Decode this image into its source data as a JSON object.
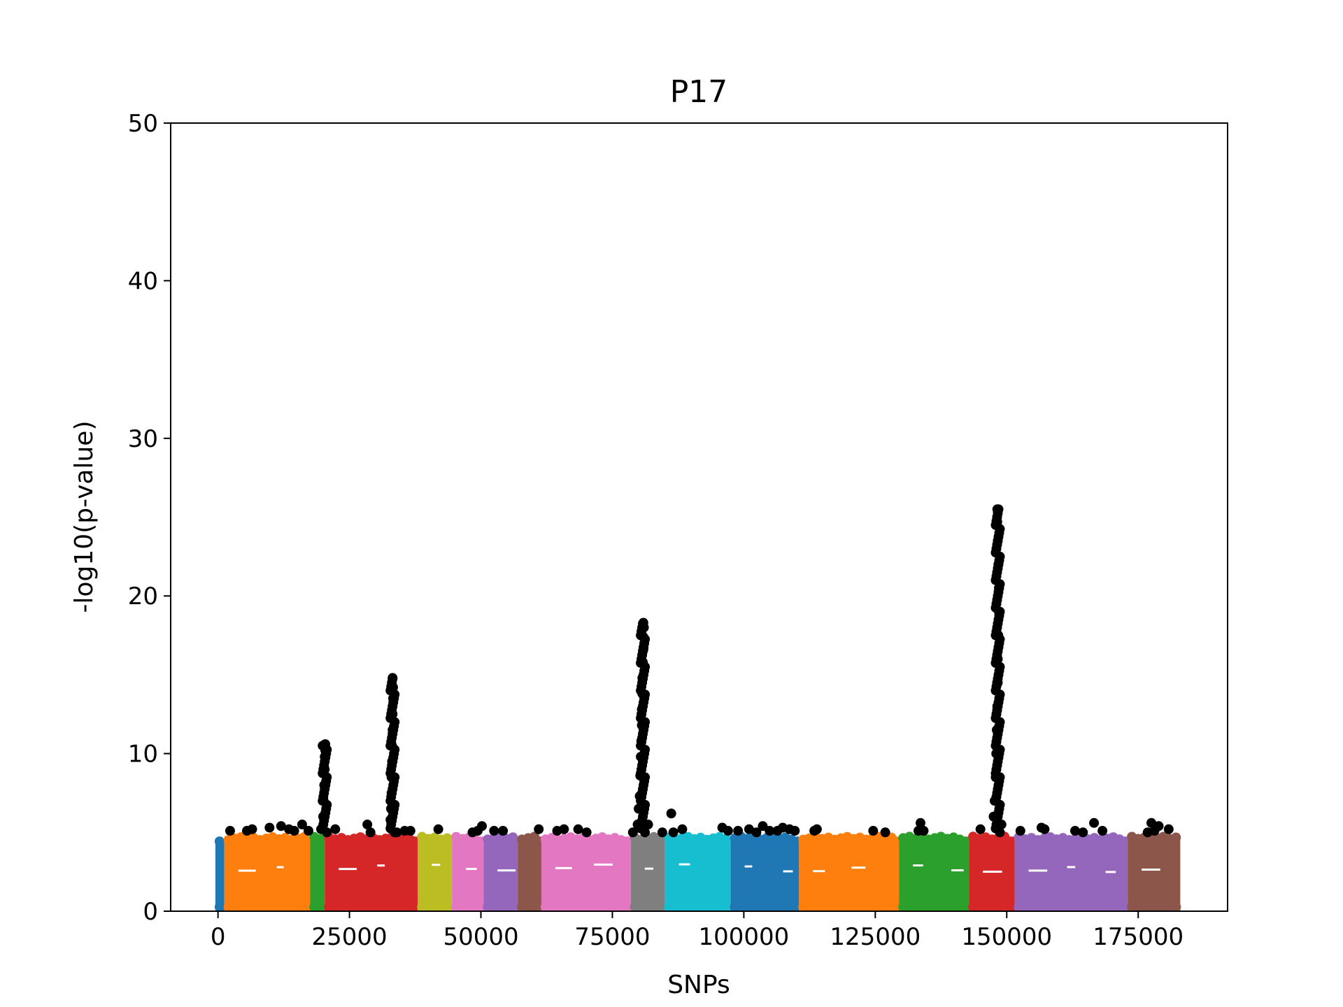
{
  "chart_data": {
    "type": "scatter",
    "title": "P17",
    "xlabel": "SNPs",
    "ylabel": "-log10(p-value)",
    "xlim": [
      -9000,
      192000
    ],
    "ylim": [
      0,
      50
    ],
    "x_ticks": [
      {
        "value": 0,
        "label": "0"
      },
      {
        "value": 25000,
        "label": "25000"
      },
      {
        "value": 50000,
        "label": "50000"
      },
      {
        "value": 75000,
        "label": "75000"
      },
      {
        "value": 100000,
        "label": "100000"
      },
      {
        "value": 125000,
        "label": "125000"
      },
      {
        "value": 150000,
        "label": "150000"
      },
      {
        "value": 175000,
        "label": "175000"
      }
    ],
    "y_ticks": [
      {
        "value": 0,
        "label": "0"
      },
      {
        "value": 10,
        "label": "10"
      },
      {
        "value": 20,
        "label": "20"
      },
      {
        "value": 30,
        "label": "30"
      },
      {
        "value": 40,
        "label": "40"
      },
      {
        "value": 50,
        "label": "50"
      }
    ],
    "grid": false,
    "background_bands": [
      {
        "x_start": -500,
        "x_end": 1200,
        "y_max": 4.8,
        "color": "#1f77b4"
      },
      {
        "x_start": 1200,
        "x_end": 17500,
        "y_max": 5.0,
        "color": "#ff7f0e"
      },
      {
        "x_start": 17500,
        "x_end": 20300,
        "y_max": 5.0,
        "color": "#2ca02c"
      },
      {
        "x_start": 20300,
        "x_end": 38000,
        "y_max": 5.0,
        "color": "#d62728"
      },
      {
        "x_start": 38000,
        "x_end": 44500,
        "y_max": 5.0,
        "color": "#bcbd22"
      },
      {
        "x_start": 44500,
        "x_end": 50500,
        "y_max": 5.0,
        "color": "#e377c2"
      },
      {
        "x_start": 50500,
        "x_end": 57000,
        "y_max": 5.0,
        "color": "#9467bd"
      },
      {
        "x_start": 57000,
        "x_end": 61500,
        "y_max": 5.0,
        "color": "#8c564b"
      },
      {
        "x_start": 61500,
        "x_end": 78500,
        "y_max": 5.0,
        "color": "#e377c2"
      },
      {
        "x_start": 78500,
        "x_end": 85000,
        "y_max": 5.0,
        "color": "#7f7f7f"
      },
      {
        "x_start": 85000,
        "x_end": 97500,
        "y_max": 5.0,
        "color": "#17becf"
      },
      {
        "x_start": 97500,
        "x_end": 110500,
        "y_max": 5.0,
        "color": "#1f77b4"
      },
      {
        "x_start": 110500,
        "x_end": 129500,
        "y_max": 5.0,
        "color": "#ff7f0e"
      },
      {
        "x_start": 129500,
        "x_end": 142800,
        "y_max": 5.0,
        "color": "#2ca02c"
      },
      {
        "x_start": 142800,
        "x_end": 151500,
        "y_max": 5.0,
        "color": "#d62728"
      },
      {
        "x_start": 151500,
        "x_end": 173000,
        "y_max": 5.0,
        "color": "#9467bd"
      },
      {
        "x_start": 173000,
        "x_end": 183000,
        "y_max": 5.0,
        "color": "#8c564b"
      }
    ],
    "peak_columns": [
      {
        "x": 20300,
        "y_min": 5.0,
        "y_max": 10.6
      },
      {
        "x": 33200,
        "y_min": 5.0,
        "y_max": 14.8
      },
      {
        "x": 80800,
        "y_min": 5.0,
        "y_max": 18.3
      },
      {
        "x": 148300,
        "y_min": 5.0,
        "y_max": 25.5
      }
    ],
    "series": [
      {
        "color": "#000000",
        "points": [
          [
            2300,
            5.1
          ],
          [
            5500,
            5.1
          ],
          [
            6500,
            5.2
          ],
          [
            9800,
            5.3
          ],
          [
            12000,
            5.4
          ],
          [
            13500,
            5.2
          ],
          [
            14500,
            5.1
          ],
          [
            16000,
            5.5
          ],
          [
            17200,
            5.1
          ],
          [
            19600,
            5.2
          ],
          [
            20000,
            6.0
          ],
          [
            20100,
            7.0
          ],
          [
            20200,
            8.0
          ],
          [
            20300,
            9.0
          ],
          [
            20300,
            9.8
          ],
          [
            20400,
            10.2
          ],
          [
            20400,
            10.6
          ],
          [
            22300,
            5.2
          ],
          [
            28400,
            5.5
          ],
          [
            29000,
            5.0
          ],
          [
            32800,
            5.8
          ],
          [
            32900,
            6.5
          ],
          [
            33000,
            7.5
          ],
          [
            33000,
            8.5
          ],
          [
            33100,
            9.5
          ],
          [
            33100,
            10.5
          ],
          [
            33200,
            11.5
          ],
          [
            33200,
            12.5
          ],
          [
            33300,
            13.5
          ],
          [
            33300,
            14.2
          ],
          [
            33200,
            14.8
          ],
          [
            34000,
            5.0
          ],
          [
            35500,
            5.1
          ],
          [
            36600,
            5.1
          ],
          [
            41900,
            5.2
          ],
          [
            48400,
            5.0
          ],
          [
            49400,
            5.1
          ],
          [
            50200,
            5.4
          ],
          [
            52500,
            5.1
          ],
          [
            54200,
            5.1
          ],
          [
            61000,
            5.2
          ],
          [
            64500,
            5.1
          ],
          [
            65800,
            5.2
          ],
          [
            68500,
            5.2
          ],
          [
            70100,
            5.0
          ],
          [
            78900,
            5.0
          ],
          [
            79800,
            5.5
          ],
          [
            80000,
            6.5
          ],
          [
            80200,
            7.3
          ],
          [
            80300,
            8.6
          ],
          [
            80400,
            9.8
          ],
          [
            80500,
            10.8
          ],
          [
            80600,
            11.8
          ],
          [
            80600,
            12.8
          ],
          [
            80700,
            13.8
          ],
          [
            80700,
            14.8
          ],
          [
            80800,
            15.8
          ],
          [
            80900,
            16.6
          ],
          [
            80900,
            17.4
          ],
          [
            81000,
            18.0
          ],
          [
            80900,
            18.3
          ],
          [
            81800,
            5.5
          ],
          [
            84500,
            5.0
          ],
          [
            86200,
            6.2
          ],
          [
            86600,
            5.0
          ],
          [
            88300,
            5.2
          ],
          [
            95900,
            5.3
          ],
          [
            97000,
            5.1
          ],
          [
            98900,
            5.1
          ],
          [
            101000,
            5.2
          ],
          [
            102400,
            5.0
          ],
          [
            103600,
            5.4
          ],
          [
            104900,
            5.1
          ],
          [
            106400,
            5.1
          ],
          [
            107400,
            5.3
          ],
          [
            108700,
            5.2
          ],
          [
            109700,
            5.1
          ],
          [
            113400,
            5.1
          ],
          [
            113900,
            5.2
          ],
          [
            124600,
            5.1
          ],
          [
            126900,
            5.0
          ],
          [
            133200,
            5.1
          ],
          [
            133600,
            5.6
          ],
          [
            134200,
            5.1
          ],
          [
            145000,
            5.2
          ],
          [
            147500,
            6.0
          ],
          [
            147700,
            7.0
          ],
          [
            147900,
            8.5
          ],
          [
            148000,
            10.0
          ],
          [
            148100,
            11.5
          ],
          [
            148200,
            13.0
          ],
          [
            148300,
            14.5
          ],
          [
            148300,
            16.0
          ],
          [
            148400,
            17.5
          ],
          [
            148500,
            19.0
          ],
          [
            148500,
            20.5
          ],
          [
            148400,
            22.0
          ],
          [
            148300,
            23.5
          ],
          [
            148200,
            24.7
          ],
          [
            148200,
            25.5
          ],
          [
            149000,
            5.5
          ],
          [
            152600,
            5.1
          ],
          [
            156600,
            5.3
          ],
          [
            157200,
            5.2
          ],
          [
            163000,
            5.1
          ],
          [
            164500,
            5.0
          ],
          [
            166600,
            5.6
          ],
          [
            168200,
            5.1
          ],
          [
            176800,
            5.0
          ],
          [
            177500,
            5.6
          ],
          [
            178100,
            5.1
          ],
          [
            178900,
            5.4
          ],
          [
            180800,
            5.2
          ]
        ]
      }
    ]
  }
}
